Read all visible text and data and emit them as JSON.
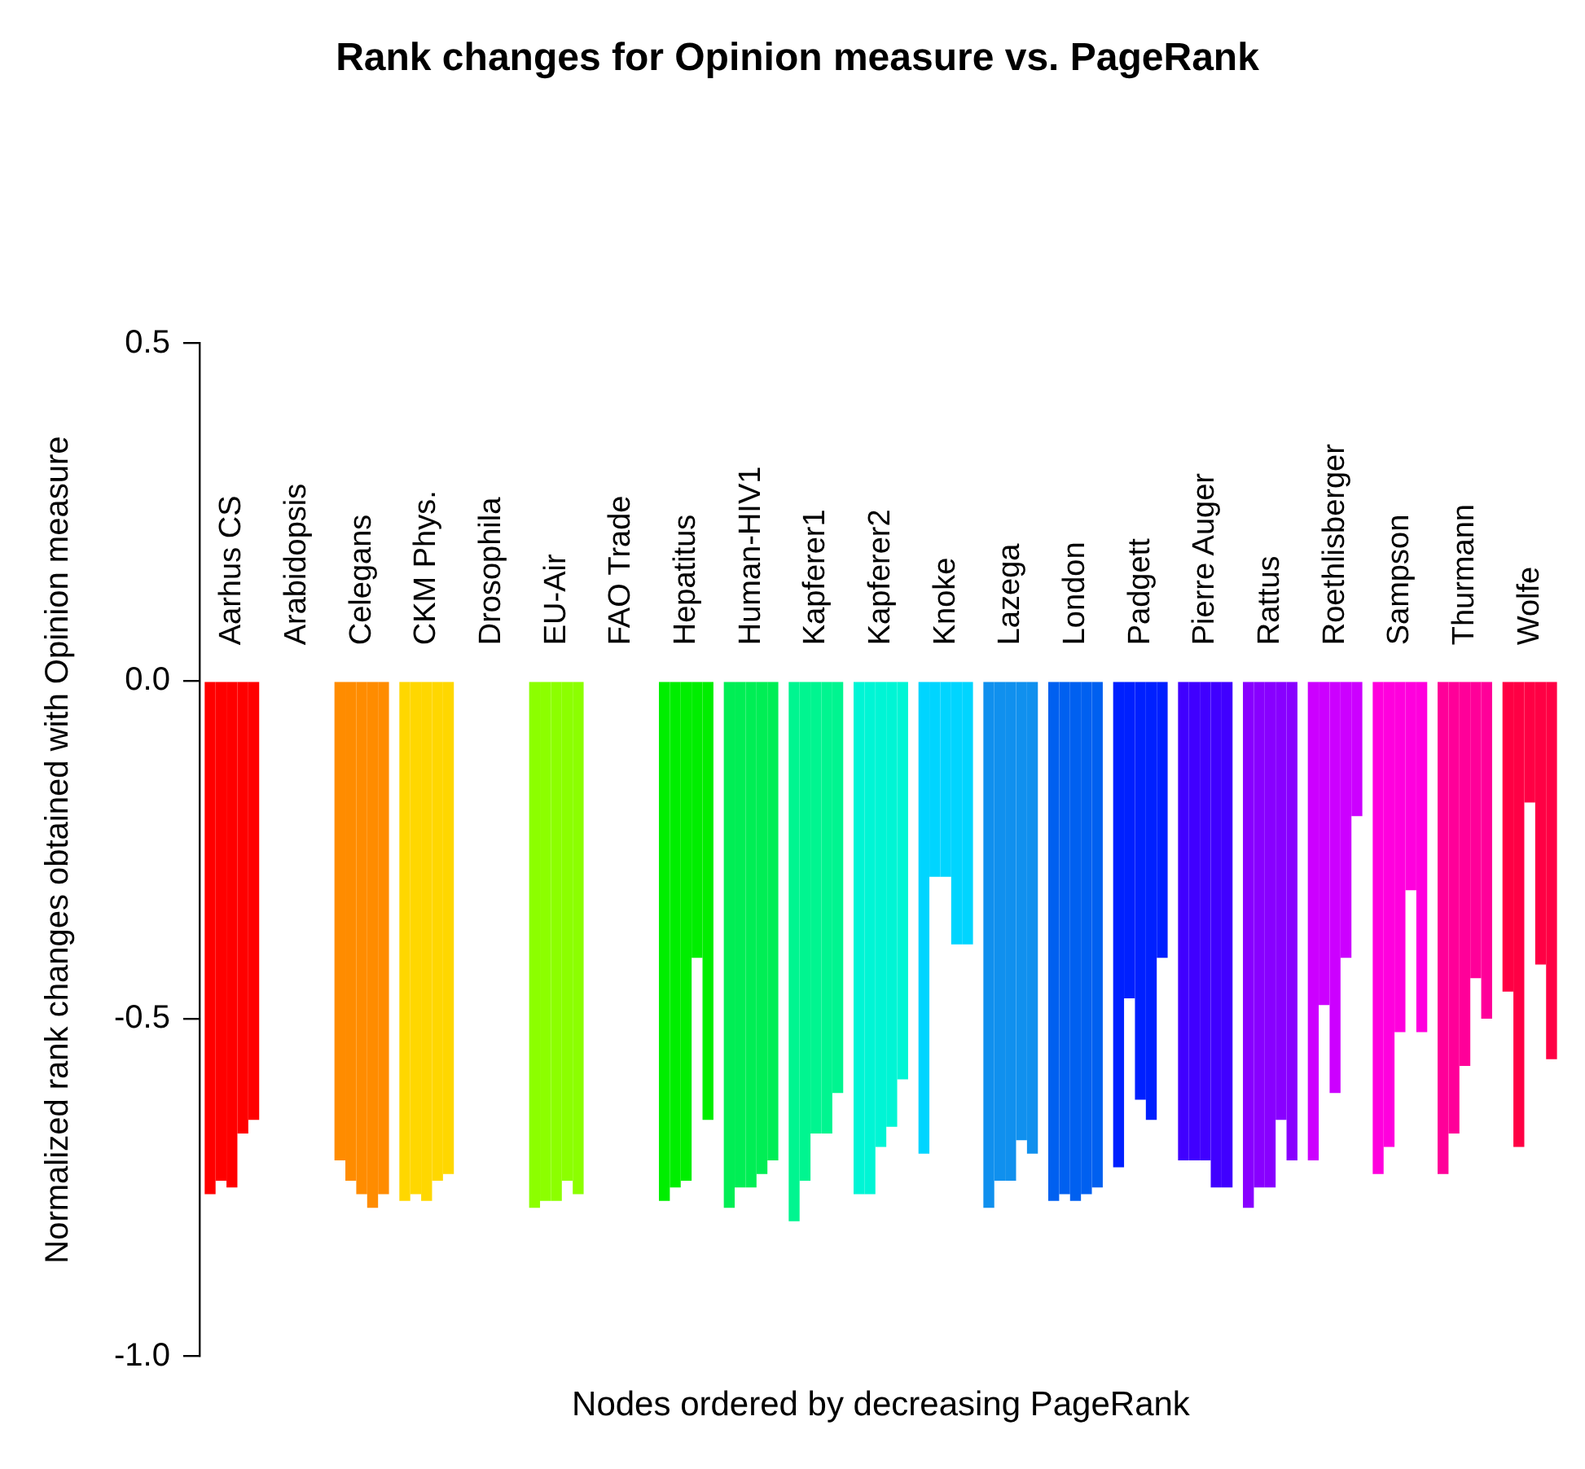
{
  "chart_data": {
    "type": "bar",
    "title": "Rank changes for Opinion measure vs. PageRank",
    "xlabel": "Nodes ordered by decreasing PageRank",
    "ylabel": "Normalized rank changes obtained with Opinion measure",
    "categories": [
      "Aarhus CS",
      "Arabidopsis",
      "Celegans",
      "CKM Phys.",
      "Drosophila",
      "EU-Air",
      "FAO Trade",
      "Hepatitus",
      "Human-HIV1",
      "Kapferer1",
      "Kapferer2",
      "Knoke",
      "Lazega",
      "London",
      "Padgett",
      "Pierre Auger",
      "Rattus",
      "Roethlisberger",
      "Sampson",
      "Thurmann",
      "Wolfe"
    ],
    "ylim": [
      -1.0,
      0.5
    ],
    "yticks": [
      {
        "value": -1.0,
        "label": "-1.0"
      },
      {
        "value": -0.5,
        "label": "-0.5"
      },
      {
        "value": 0.0,
        "label": "0.0"
      },
      {
        "value": 0.5,
        "label": "0.5"
      }
    ],
    "grid": false,
    "legend": false,
    "series": [
      {
        "colors": [
          "#ff0000",
          null,
          "#ff8c00",
          "#ffd700",
          null,
          "#8cff00",
          null,
          "#00ee00",
          "#00ee55",
          "#00f590",
          "#00f5d5",
          "#00d5ff",
          "#1090ee",
          "#0060f0",
          "#0020ff",
          "#4000ff",
          "#8800ff",
          "#cc00ff",
          "#ff00dd",
          "#ff0099",
          "#ff0044"
        ],
        "values": [
          -0.76,
          null,
          -0.71,
          -0.77,
          null,
          -0.78,
          null,
          -0.77,
          -0.78,
          -0.8,
          -0.76,
          -0.7,
          -0.78,
          -0.77,
          -0.72,
          -0.71,
          -0.78,
          -0.71,
          -0.73,
          -0.73,
          -0.46
        ]
      },
      {
        "colors": [
          "#ff0000",
          null,
          "#ff8c00",
          "#ffd700",
          null,
          "#8cff00",
          null,
          "#00ee00",
          "#00ee55",
          "#00f590",
          "#00f5d5",
          "#00d5ff",
          "#1090ee",
          "#0060f0",
          "#0020ff",
          "#4000ff",
          "#8800ff",
          "#cc00ff",
          "#ff00dd",
          "#ff0099",
          "#ff0044"
        ],
        "values": [
          -0.74,
          null,
          -0.74,
          -0.76,
          null,
          -0.77,
          null,
          -0.75,
          -0.75,
          -0.74,
          -0.76,
          -0.29,
          -0.74,
          -0.76,
          -0.47,
          -0.71,
          -0.75,
          -0.48,
          -0.69,
          -0.67,
          -0.69
        ]
      },
      {
        "colors": [
          "#ff0000",
          null,
          "#ff8c00",
          "#ffd700",
          null,
          "#8cff00",
          null,
          "#00ee00",
          "#00ee55",
          "#00f590",
          "#00f5d5",
          "#00d5ff",
          "#1090ee",
          "#0060f0",
          "#0020ff",
          "#4000ff",
          "#8800ff",
          "#cc00ff",
          "#ff00dd",
          "#ff0099",
          "#ff0044"
        ],
        "values": [
          -0.75,
          null,
          -0.76,
          -0.77,
          null,
          -0.77,
          null,
          -0.74,
          -0.75,
          -0.67,
          -0.69,
          -0.29,
          -0.74,
          -0.77,
          -0.62,
          -0.71,
          -0.75,
          -0.61,
          -0.52,
          -0.57,
          -0.18
        ]
      },
      {
        "colors": [
          "#ff0000",
          null,
          "#ff8c00",
          "#ffd700",
          null,
          "#8cff00",
          null,
          "#00ee00",
          "#00ee55",
          "#00f590",
          "#00f5d5",
          "#00d5ff",
          "#1090ee",
          "#0060f0",
          "#0020ff",
          "#4000ff",
          "#8800ff",
          "#cc00ff",
          "#ff00dd",
          "#ff0099",
          "#ff0044"
        ],
        "values": [
          -0.67,
          null,
          -0.78,
          -0.74,
          null,
          -0.74,
          null,
          -0.41,
          -0.73,
          -0.67,
          -0.66,
          -0.39,
          -0.68,
          -0.76,
          -0.65,
          -0.75,
          -0.65,
          -0.41,
          -0.31,
          -0.44,
          -0.42
        ]
      },
      {
        "colors": [
          "#ff0000",
          null,
          "#ff8c00",
          "#ffd700",
          null,
          "#8cff00",
          null,
          "#00ee00",
          "#00ee55",
          "#00f590",
          "#00f5d5",
          "#00d5ff",
          "#1090ee",
          "#0060f0",
          "#0020ff",
          "#4000ff",
          "#8800ff",
          "#cc00ff",
          "#ff00dd",
          "#ff0099",
          "#ff0044"
        ],
        "values": [
          -0.65,
          null,
          -0.76,
          -0.73,
          null,
          -0.76,
          null,
          -0.65,
          -0.71,
          -0.61,
          -0.59,
          -0.39,
          -0.7,
          -0.75,
          -0.41,
          -0.75,
          -0.71,
          -0.2,
          -0.52,
          -0.5,
          -0.56
        ]
      }
    ]
  }
}
